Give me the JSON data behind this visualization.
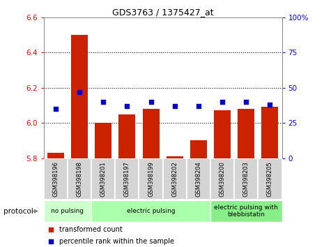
{
  "title": "GDS3763 / 1375427_at",
  "categories": [
    "GSM398196",
    "GSM398198",
    "GSM398201",
    "GSM398197",
    "GSM398199",
    "GSM398202",
    "GSM398204",
    "GSM398200",
    "GSM398203",
    "GSM398205"
  ],
  "bar_values": [
    5.83,
    6.5,
    6.0,
    6.05,
    6.08,
    5.81,
    5.9,
    6.07,
    6.08,
    6.09
  ],
  "scatter_right_axis": [
    35,
    47,
    40,
    37,
    40,
    37,
    37,
    40,
    40,
    38
  ],
  "bar_color": "#cc2200",
  "scatter_color": "#0000cc",
  "left_ylim": [
    5.8,
    6.6
  ],
  "right_ylim": [
    0,
    100
  ],
  "left_yticks": [
    5.8,
    6.0,
    6.2,
    6.4,
    6.6
  ],
  "right_yticks": [
    0,
    25,
    50,
    75,
    100
  ],
  "right_yticklabels": [
    "0",
    "25",
    "50",
    "75",
    "100%"
  ],
  "groups": [
    {
      "label": "no pulsing",
      "start": 0,
      "end": 2,
      "color": "#ccffcc"
    },
    {
      "label": "electric pulsing",
      "start": 2,
      "end": 7,
      "color": "#aaffaa"
    },
    {
      "label": "electric pulsing with\nblebbistatin",
      "start": 7,
      "end": 10,
      "color": "#88ee88"
    }
  ],
  "protocol_label": "protocol",
  "legend_items": [
    {
      "color": "#cc2200",
      "label": "transformed count"
    },
    {
      "color": "#0000cc",
      "label": "percentile rank within the sample"
    }
  ],
  "grid_yticks": [
    6.0,
    6.2,
    6.4
  ],
  "bar_baseline": 5.8,
  "bg_color": "#ffffff"
}
